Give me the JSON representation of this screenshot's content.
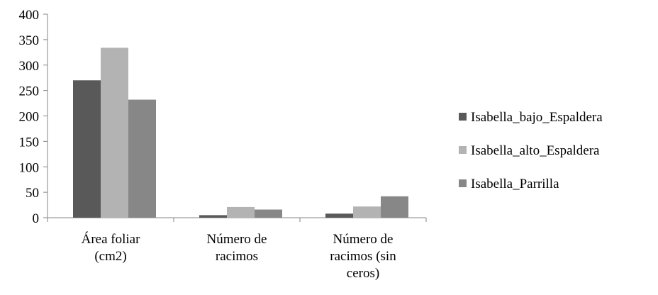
{
  "chart_data": {
    "type": "bar",
    "title": "",
    "xlabel": "",
    "ylabel": "",
    "ylim": [
      0,
      400
    ],
    "yticks": [
      0,
      50,
      100,
      150,
      200,
      250,
      300,
      350,
      400
    ],
    "grid": false,
    "legend_position": "right",
    "categories": [
      [
        "Área foliar",
        "(cm2)"
      ],
      [
        "Número de",
        "racimos"
      ],
      [
        "Número de",
        "racimos (sin",
        "ceros)"
      ]
    ],
    "series": [
      {
        "name": "Isabella_bajo_Espaldera",
        "color": "#595959",
        "values": [
          270,
          5,
          8
        ]
      },
      {
        "name": "Isabella_alto_Espaldera",
        "color": "#b3b3b3",
        "values": [
          334,
          21,
          22
        ]
      },
      {
        "name": "Isabella_Parrilla",
        "color": "#878787",
        "values": [
          232,
          16,
          42
        ]
      }
    ]
  }
}
